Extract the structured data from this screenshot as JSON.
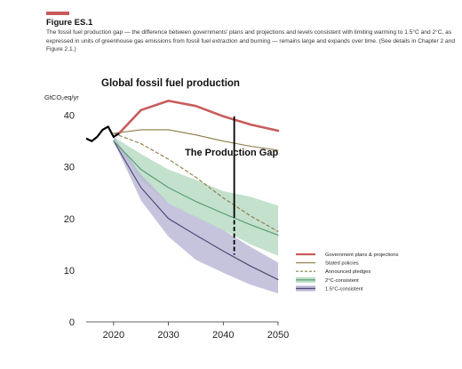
{
  "header": {
    "figure_label": "Figure ES.1",
    "caption": "The fossil fuel production gap — the difference between governments' plans and projections and levels consistent with limiting warming to 1.5°C and 2°C, as expressed in units of greenhouse gas emissions from fossil fuel extraction and burning — remains large and expands over time. (See details in Chapter 2 and Figure 2.1.)",
    "accent_color": "#c95b5b"
  },
  "chart_data": {
    "type": "line",
    "title": "Global fossil fuel production",
    "ylabel": "GtCO₂eq/yr",
    "xlabel": "",
    "xlim": [
      2015,
      2050
    ],
    "ylim": [
      0,
      42
    ],
    "x_ticks": [
      2020,
      2030,
      2040,
      2050
    ],
    "y_ticks": [
      0,
      10,
      20,
      30,
      40
    ],
    "grid": false,
    "legend_position": "right",
    "historical": {
      "color": "#000000",
      "points": [
        [
          2015,
          35.5
        ],
        [
          2016,
          35.0
        ],
        [
          2017,
          35.8
        ],
        [
          2018,
          37.2
        ],
        [
          2019,
          37.8
        ],
        [
          2020,
          35.8
        ],
        [
          2021,
          36.5
        ]
      ]
    },
    "series": [
      {
        "name": "Government plans & projections",
        "color": "#c95b5b",
        "points": [
          [
            2021,
            36.5
          ],
          [
            2025,
            41.0
          ],
          [
            2030,
            42.8
          ],
          [
            2035,
            41.8
          ],
          [
            2040,
            39.8
          ],
          [
            2045,
            38.2
          ],
          [
            2050,
            37.0
          ]
        ]
      },
      {
        "name": "Stated policies",
        "color": "#8c7a46",
        "points": [
          [
            2020,
            36.5
          ],
          [
            2025,
            37.2
          ],
          [
            2030,
            37.2
          ],
          [
            2035,
            36.2
          ],
          [
            2040,
            35.0
          ],
          [
            2045,
            34.0
          ],
          [
            2050,
            33.2
          ]
        ]
      },
      {
        "name": "Announced pledges",
        "color": "#8c7a46",
        "dashed": true,
        "points": [
          [
            2020,
            36.5
          ],
          [
            2025,
            34.5
          ],
          [
            2030,
            31.5
          ],
          [
            2035,
            28.0
          ],
          [
            2040,
            24.0
          ],
          [
            2045,
            20.5
          ],
          [
            2050,
            17.5
          ]
        ]
      },
      {
        "name": "2°C-consistent",
        "color": "#5a9d73",
        "band_color": "#b9dcc4",
        "points": [
          [
            2020,
            35.0
          ],
          [
            2025,
            29.5
          ],
          [
            2030,
            26.0
          ],
          [
            2035,
            23.3
          ],
          [
            2040,
            21.0
          ],
          [
            2045,
            18.8
          ],
          [
            2050,
            16.8
          ]
        ],
        "upper": [
          [
            2020,
            35.8
          ],
          [
            2025,
            32.5
          ],
          [
            2030,
            29.5
          ],
          [
            2035,
            27.5
          ],
          [
            2040,
            25.3
          ],
          [
            2045,
            24.2
          ],
          [
            2050,
            22.5
          ]
        ],
        "lower": [
          [
            2020,
            35.0
          ],
          [
            2025,
            27.5
          ],
          [
            2030,
            23.0
          ],
          [
            2035,
            20.2
          ],
          [
            2040,
            17.8
          ],
          [
            2045,
            15.0
          ],
          [
            2050,
            12.8
          ]
        ]
      },
      {
        "name": "1.5°C-consistent",
        "color": "#4f4c78",
        "band_color": "#b8b5d4",
        "points": [
          [
            2020,
            35.0
          ],
          [
            2025,
            26.0
          ],
          [
            2030,
            20.0
          ],
          [
            2035,
            16.8
          ],
          [
            2040,
            13.7
          ],
          [
            2045,
            10.8
          ],
          [
            2050,
            8.2
          ]
        ],
        "upper": [
          [
            2020,
            35.8
          ],
          [
            2025,
            28.5
          ],
          [
            2030,
            23.0
          ],
          [
            2035,
            20.3
          ],
          [
            2040,
            17.8
          ],
          [
            2045,
            14.5
          ],
          [
            2050,
            11.5
          ]
        ],
        "lower": [
          [
            2020,
            35.0
          ],
          [
            2025,
            23.5
          ],
          [
            2030,
            16.5
          ],
          [
            2035,
            12.0
          ],
          [
            2040,
            9.5
          ],
          [
            2045,
            7.2
          ],
          [
            2050,
            5.5
          ]
        ]
      }
    ],
    "annotation": {
      "text": "The Production Gap",
      "x": 2042,
      "y_top": 39.8,
      "y_solid_end": 21.0,
      "y_bottom": 13.0
    }
  }
}
